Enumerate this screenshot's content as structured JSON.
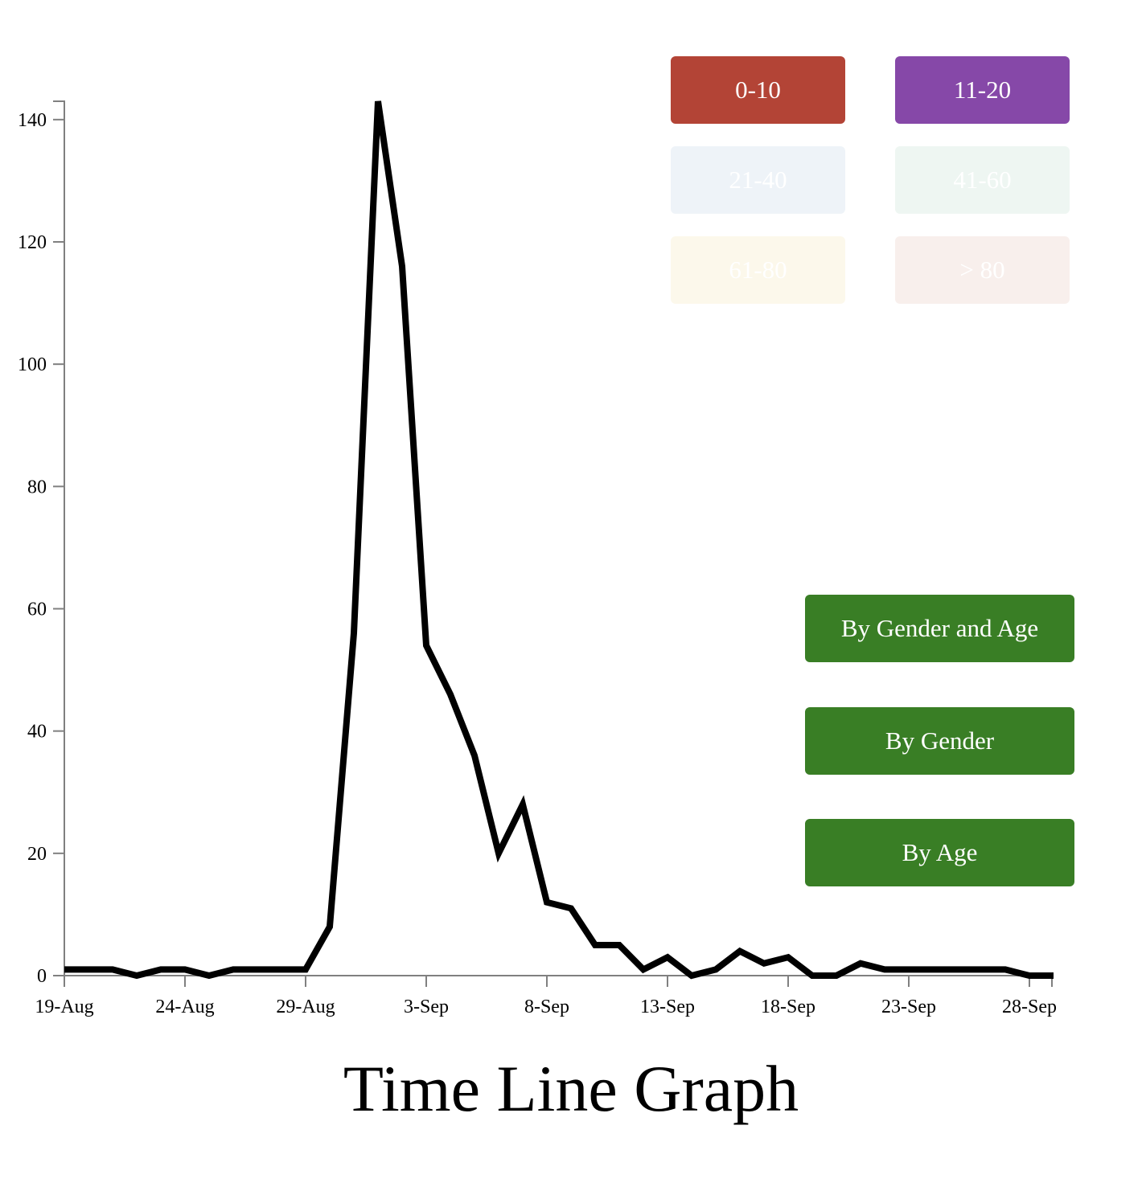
{
  "chart_data": {
    "type": "line",
    "title": "Time Line Graph",
    "xlabel": "",
    "ylabel": "",
    "ylim": [
      0,
      143
    ],
    "yticks": [
      0,
      20,
      40,
      60,
      80,
      100,
      120,
      140
    ],
    "x_start": "19-Aug",
    "x_ticks": [
      "19-Aug",
      "24-Aug",
      "29-Aug",
      "3-Sep",
      "8-Sep",
      "13-Sep",
      "18-Sep",
      "23-Sep",
      "28-Sep"
    ],
    "series": [
      {
        "color": "#000000",
        "x": [
          "19-Aug",
          "20-Aug",
          "21-Aug",
          "22-Aug",
          "23-Aug",
          "24-Aug",
          "25-Aug",
          "26-Aug",
          "27-Aug",
          "28-Aug",
          "29-Aug",
          "30-Aug",
          "31-Aug",
          "1-Sep",
          "2-Sep",
          "3-Sep",
          "4-Sep",
          "5-Sep",
          "6-Sep",
          "7-Sep",
          "8-Sep",
          "9-Sep",
          "10-Sep",
          "11-Sep",
          "12-Sep",
          "13-Sep",
          "14-Sep",
          "15-Sep",
          "16-Sep",
          "17-Sep",
          "18-Sep",
          "19-Sep",
          "20-Sep",
          "21-Sep",
          "22-Sep",
          "23-Sep",
          "24-Sep",
          "25-Sep",
          "26-Sep",
          "27-Sep",
          "28-Sep",
          "29-Sep"
        ],
        "values": [
          1,
          1,
          1,
          0,
          1,
          1,
          0,
          1,
          1,
          1,
          1,
          8,
          56,
          143,
          116,
          54,
          46,
          36,
          20,
          28,
          12,
          11,
          5,
          5,
          1,
          3,
          0,
          1,
          4,
          2,
          3,
          0,
          0,
          2,
          1,
          1,
          1,
          1,
          1,
          1,
          0,
          0
        ]
      }
    ]
  },
  "legend": {
    "items": [
      {
        "label": "0-10",
        "color": "#b34436"
      },
      {
        "label": "11-20",
        "color": "#8648a8"
      },
      {
        "label": "21-40",
        "color": "#eef3f8"
      },
      {
        "label": "41-60",
        "color": "#eef6f2"
      },
      {
        "label": "61-80",
        "color": "#fcf8eb"
      },
      {
        "label": "> 80",
        "color": "#f8efec"
      }
    ]
  },
  "buttons": {
    "gender_age": "By Gender and Age",
    "gender": "By Gender",
    "age": "By Age",
    "color": "#397e25"
  }
}
